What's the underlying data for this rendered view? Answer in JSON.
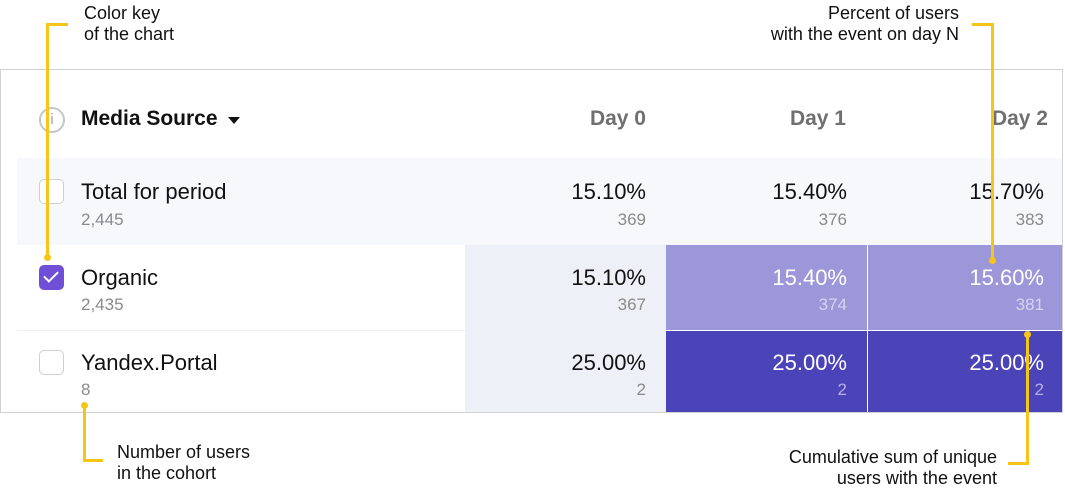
{
  "callouts": {
    "color_key": [
      "Color key",
      "of the chart"
    ],
    "percent_users": [
      "Percent of users",
      "with the event on day N"
    ],
    "cohort_users": [
      "Number of users",
      "in the cohort"
    ],
    "cumulative_sum": [
      "Cumulative sum of unique",
      "users with the event"
    ]
  },
  "table": {
    "info_icon": "info-icon",
    "header": {
      "title": "Media Source",
      "dropdown_icon": "caret-down-icon",
      "days": [
        "Day 0",
        "Day 1",
        "Day 2"
      ]
    },
    "rows": [
      {
        "name": "Total for period",
        "count": "2,445",
        "checked": false,
        "cells": [
          {
            "pct": "15.10%",
            "count": "369"
          },
          {
            "pct": "15.40%",
            "count": "376"
          },
          {
            "pct": "15.70%",
            "count": "383"
          }
        ]
      },
      {
        "name": "Organic",
        "count": "2,435",
        "checked": true,
        "cells": [
          {
            "pct": "15.10%",
            "count": "367"
          },
          {
            "pct": "15.40%",
            "count": "374"
          },
          {
            "pct": "15.60%",
            "count": "381"
          }
        ]
      },
      {
        "name": "Yandex.Portal",
        "count": "8",
        "checked": false,
        "cells": [
          {
            "pct": "25.00%",
            "count": "2"
          },
          {
            "pct": "25.00%",
            "count": "2"
          },
          {
            "pct": "25.00%",
            "count": "2"
          }
        ]
      }
    ]
  },
  "colors": {
    "accent": "#6e4fd6",
    "heat_light": "#9b97d9",
    "heat_dark": "#4b44b8",
    "summary_bg": "#f7f8fb",
    "callout_line": "#f5c518"
  }
}
